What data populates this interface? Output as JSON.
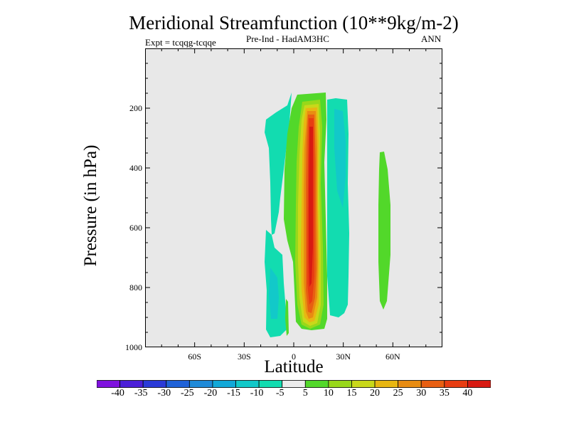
{
  "chart_data": {
    "type": "heatmap",
    "title": "Meridional Streamfunction (10**9kg/m-2)",
    "subtitle_left": "Expt = tcqqg-tcqqe",
    "subtitle_center": "Pre-Ind - HadAM3HC",
    "subtitle_right": "ANN",
    "xlabel": "Latitude",
    "ylabel": "Pressure (in hPa)",
    "xlim": [
      -90,
      90
    ],
    "ylim": [
      1000,
      0
    ],
    "x_ticks": [
      {
        "value": -60,
        "label": "60S"
      },
      {
        "value": -30,
        "label": "30S"
      },
      {
        "value": 0,
        "label": "0"
      },
      {
        "value": 30,
        "label": "30N"
      },
      {
        "value": 60,
        "label": "60N"
      }
    ],
    "y_ticks": [
      {
        "value": 200,
        "label": "200"
      },
      {
        "value": 400,
        "label": "400"
      },
      {
        "value": 600,
        "label": "600"
      },
      {
        "value": 800,
        "label": "800"
      },
      {
        "value": 1000,
        "label": "1000"
      }
    ],
    "colorbar": {
      "labels": [
        "-40",
        "-35",
        "-30",
        "-25",
        "-20",
        "-15",
        "-10",
        "-5",
        "5",
        "10",
        "15",
        "20",
        "25",
        "30",
        "35",
        "40"
      ],
      "colors": [
        "#7f12de",
        "#4b1fd8",
        "#2a3ad8",
        "#1f62d8",
        "#1f8ad8",
        "#12a8d8",
        "#12c9c9",
        "#12dcb0",
        "#ebebeb",
        "#52d82a",
        "#98d81a",
        "#c9d81a",
        "#e8b612",
        "#e88c12",
        "#e85f12",
        "#e83d12",
        "#d81a12"
      ]
    },
    "features": [
      {
        "name": "nh-negative-left-lobe",
        "value": -10,
        "lat": [
          -20,
          -6
        ],
        "p": [
          140,
          980
        ]
      },
      {
        "name": "nh-negative-right-cell",
        "value": -10,
        "lat": [
          13,
          35
        ],
        "p": [
          150,
          890
        ]
      },
      {
        "name": "sh-small-positive-sliver",
        "value": 10,
        "lat": [
          -3,
          -2
        ],
        "p": [
          830,
          980
        ]
      },
      {
        "name": "positive-main-cell",
        "value": 40,
        "lat": [
          -6,
          21
        ],
        "p": [
          140,
          985
        ]
      },
      {
        "name": "nh-high-lat-positive-cell",
        "value": 10,
        "lat": [
          52,
          60
        ],
        "p": [
          360,
          860
        ]
      }
    ],
    "background_color": "#e8e8e8"
  }
}
